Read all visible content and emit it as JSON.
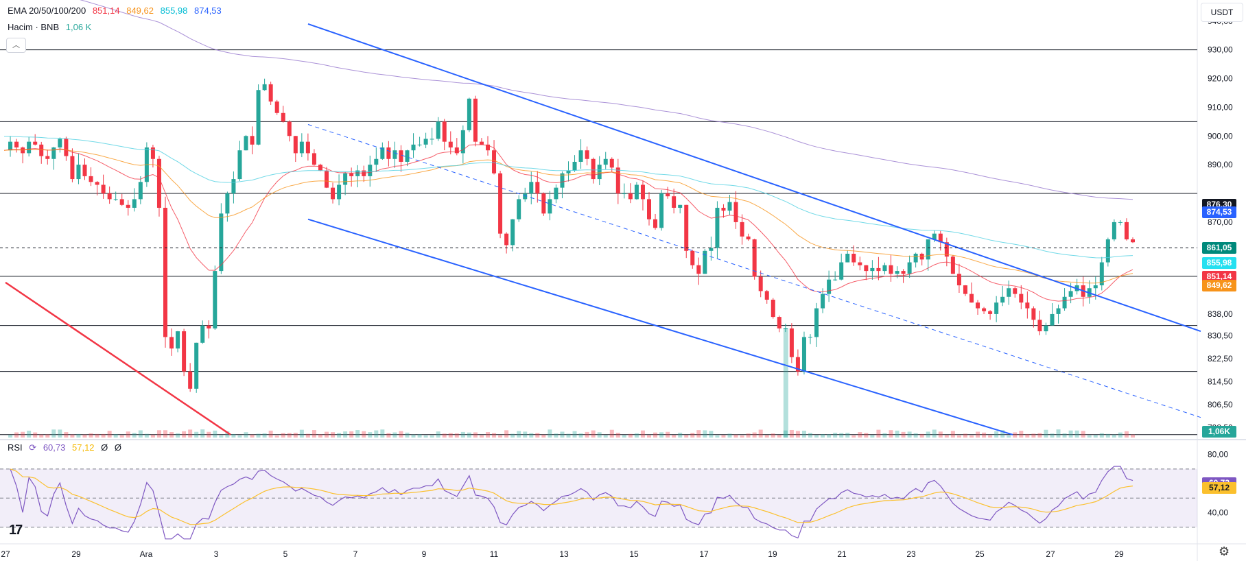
{
  "legend": {
    "ema_label": "EMA 20/50/100/200",
    "ema_values": [
      "851,14",
      "849,62",
      "855,98",
      "874,53"
    ],
    "ema_colors": [
      "#f23645",
      "#f7931a",
      "#00bcd4",
      "#2962ff"
    ],
    "volume_label": "Hacim · BNB",
    "volume_value": "1,06 K",
    "rsi_label": "RSI",
    "rsi_values": [
      "60,73",
      "57,12",
      "Ø",
      "Ø"
    ],
    "collapse_icon": "chevron-up-icon"
  },
  "currency": "USDT",
  "price_axis_ticks": [
    "940,00",
    "930,00",
    "920,00",
    "910,00",
    "900,00",
    "890,00",
    "870,00",
    "838,00",
    "830,50",
    "822,50",
    "814,50",
    "806,50",
    "798,50"
  ],
  "rsi_axis_ticks": [
    "80,00",
    "40,00"
  ],
  "time_axis_ticks": [
    "27",
    "29",
    "Ara",
    "3",
    "5",
    "7",
    "9",
    "11",
    "13",
    "15",
    "17",
    "19",
    "21",
    "23",
    "25",
    "27",
    "29"
  ],
  "price_tags": [
    {
      "value": "876,30",
      "price": 876.3,
      "color": "#131722"
    },
    {
      "value": "874,53",
      "price": 873.6,
      "color": "#2962ff"
    },
    {
      "value": "861,05",
      "price": 861.05,
      "color": "#00897b"
    },
    {
      "value": "855,98",
      "price": 855.98,
      "color": "#26e0f0"
    },
    {
      "value": "851,14",
      "price": 851.14,
      "color": "#f23645"
    },
    {
      "value": "849,62",
      "price": 848.0,
      "color": "#f7931a"
    },
    {
      "value": "1,06K",
      "price": null,
      "color": "#26a69a"
    }
  ],
  "rsi_tags": [
    {
      "value": "60,73",
      "rsi": 60.73,
      "color": "#7e57c2"
    },
    {
      "value": "57,12",
      "rsi": 57.12,
      "color": "#fbc02d"
    }
  ],
  "chart_data": {
    "type": "candlestick",
    "symbol": "BNB/USDT",
    "price_range": [
      795,
      944
    ],
    "horizontal_levels": [
      930.0,
      905.0,
      880.0,
      851.14,
      834.0,
      818.0,
      796.0
    ],
    "last_price": 861.05,
    "ema": {
      "20": 851.14,
      "50": 849.62,
      "100": 855.98,
      "200": 874.53
    },
    "volume_last": "1,06 K",
    "rsi": {
      "value": 60.73,
      "ma": 57.12,
      "range": [
        20,
        85
      ],
      "upper_band": 70,
      "lower_band": 30,
      "mid_band": 50
    },
    "candles_close_path": [
      895,
      898,
      896,
      894,
      898,
      897,
      893,
      892,
      896,
      899,
      893,
      885,
      890,
      886,
      884,
      883,
      880,
      878,
      878,
      876,
      875,
      878,
      884,
      896,
      892,
      875,
      830,
      826,
      832,
      818,
      812,
      828,
      834,
      833,
      853,
      873,
      880,
      885,
      895,
      900,
      897,
      916,
      918,
      912,
      908,
      905,
      900,
      894,
      898,
      894,
      890,
      888,
      882,
      878,
      883,
      887,
      886,
      888,
      886,
      890,
      892,
      896,
      892,
      895,
      891,
      895,
      897,
      897,
      899,
      899,
      905,
      898,
      896,
      894,
      902,
      913,
      898,
      897,
      895,
      887,
      866,
      862,
      871,
      878,
      880,
      884,
      880,
      873,
      878,
      882,
      887,
      888,
      891,
      895,
      892,
      885,
      890,
      892,
      889,
      880,
      880,
      878,
      883,
      878,
      871,
      868,
      880,
      879,
      875,
      876,
      860,
      855,
      852,
      860,
      861,
      875,
      874,
      877,
      870,
      865,
      864,
      851,
      846,
      843,
      837,
      833,
      833,
      823,
      818,
      830,
      830,
      840,
      845,
      850,
      850,
      856,
      859,
      856,
      855,
      853,
      854,
      853,
      855,
      852,
      853,
      852,
      856,
      859,
      857,
      864,
      866,
      863,
      858,
      852,
      848,
      845,
      842,
      840,
      839,
      838,
      842,
      844,
      847,
      845,
      842,
      840,
      836,
      832,
      834,
      838,
      840,
      844,
      846,
      848,
      844,
      847,
      848,
      856,
      864,
      870,
      870,
      864,
      863
    ],
    "volume_highlight": {
      "date": "19",
      "relative": 1.0
    },
    "trendlines": {
      "channel_top": {
        "from": [
          "6",
          939
        ],
        "to": [
          "29+",
          832
        ]
      },
      "channel_bottom": {
        "from": [
          "6",
          871
        ],
        "to": [
          "26",
          796
        ]
      },
      "channel_mid_dashed": {
        "from": [
          "6",
          904
        ],
        "to": [
          "29+",
          802
        ]
      },
      "red_downtrend": {
        "from": [
          "27",
          849
        ],
        "to": [
          "4",
          796
        ]
      }
    }
  }
}
